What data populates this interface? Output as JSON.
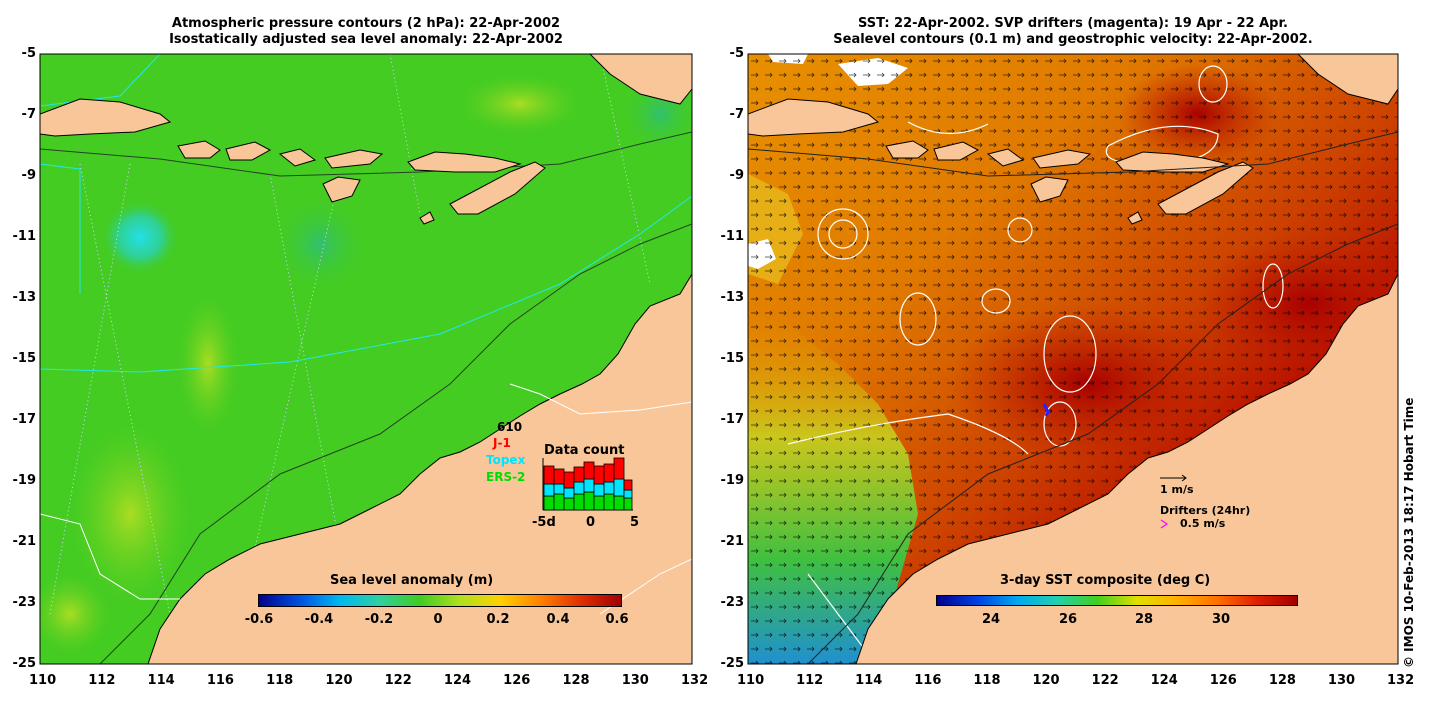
{
  "left_panel": {
    "title_line1": "Atmospheric pressure contours (2 hPa): 22-Apr-2002",
    "title_line2": "Isostatically adjusted sea level anomaly: 22-Apr-2002",
    "colorbar_title": "Sea level anomaly (m)",
    "colorbar_ticks": [
      "-0.6",
      "-0.4",
      "-0.2",
      "0",
      "0.2",
      "0.4",
      "0.6"
    ],
    "data_count": {
      "title": "Data count",
      "total": "610",
      "missions": [
        {
          "name": "J-1",
          "color": "#ff0000"
        },
        {
          "name": "Topex",
          "color": "#00e5ff"
        },
        {
          "name": "ERS-2",
          "color": "#00dd00"
        }
      ],
      "axis_labels": [
        "-5d",
        "0",
        "5"
      ]
    }
  },
  "right_panel": {
    "title_line1": "SST: 22-Apr-2002. SVP drifters (magenta): 19 Apr - 22 Apr.",
    "title_line2": "Sealevel contours (0.1 m) and geostrophic velocity: 22-Apr-2002.",
    "colorbar_title": "3-day SST composite (deg C)",
    "colorbar_ticks": [
      "24",
      "26",
      "28",
      "30"
    ],
    "velocity_scale_label": "1 m/s",
    "drifters_label": "Drifters (24hr)",
    "drifter_scale_label": "0.5 m/s"
  },
  "x_ticks": [
    "110",
    "112",
    "114",
    "116",
    "118",
    "120",
    "122",
    "124",
    "126",
    "128",
    "130",
    "132"
  ],
  "y_ticks": [
    "-5",
    "-7",
    "-9",
    "-11",
    "-13",
    "-15",
    "-17",
    "-19",
    "-21",
    "-23",
    "-25"
  ],
  "copyright": "© IMOS 10-Feb-2013 18:17 Hobart Time",
  "colors": {
    "land": "#f8c698",
    "ocean_sla": "#44cc22",
    "sst_hot": "#b81000",
    "sst_mid": "#e08a10"
  },
  "chart_data": {
    "type": "map",
    "region_lon_range": [
      110,
      132
    ],
    "region_lat_range": [
      -25,
      -5
    ],
    "date": "22-Apr-2002",
    "sla_colorbar_range_m": [
      -0.6,
      0.6
    ],
    "sst_colorbar_range_degC": [
      23,
      31.5
    ]
  }
}
